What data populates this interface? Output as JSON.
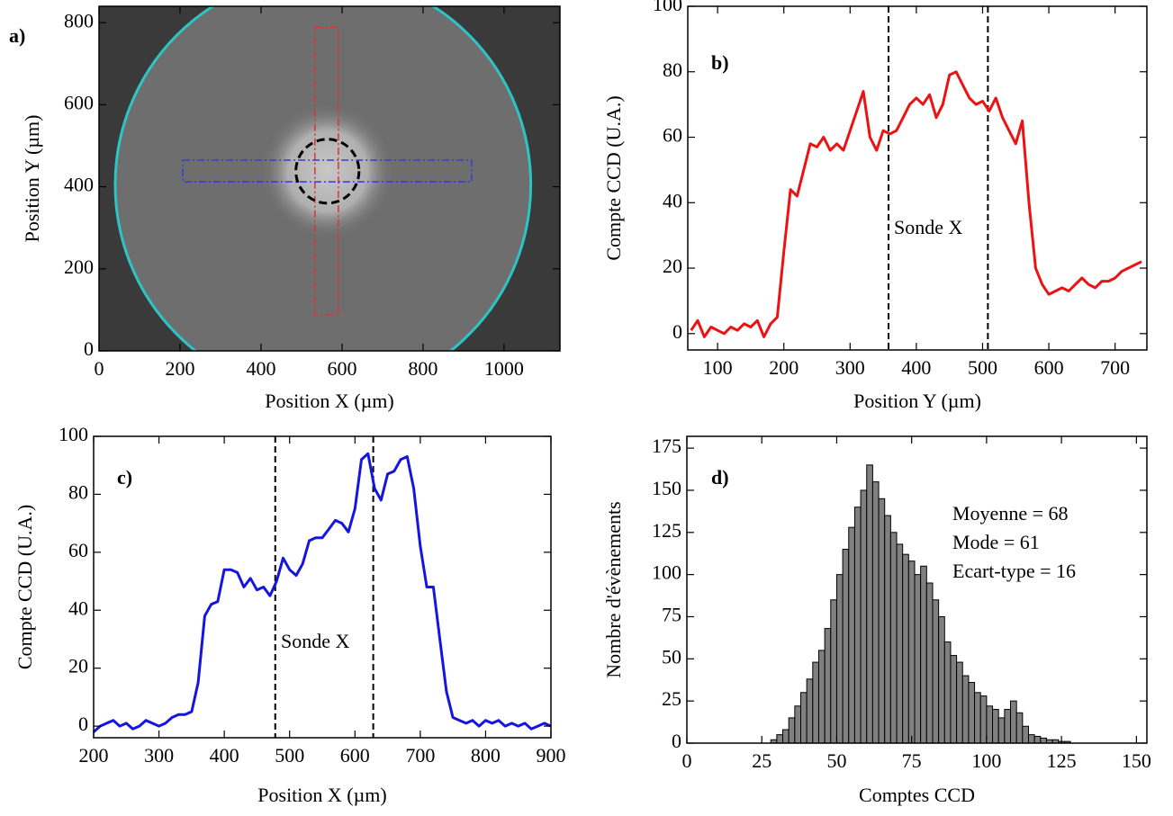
{
  "chart_data": [
    {
      "type": "image",
      "panel_label": "a)",
      "x_label": "Position X (µm)",
      "y_label": "Position Y (µm)",
      "xlim": [
        0,
        1138
      ],
      "ylim": [
        0,
        840
      ],
      "xticks": [
        0,
        200,
        400,
        600,
        800,
        1000
      ],
      "yticks": [
        0,
        200,
        400,
        600,
        800
      ],
      "sample_circle": {
        "center": [
          553,
          405
        ],
        "radius": 513,
        "color": "#2ec4c4"
      },
      "probe_circle": {
        "center": [
          564,
          438
        ],
        "radius": 78,
        "color": "#000000"
      },
      "profile_y_region": {
        "x": [
          533,
          591
        ],
        "y": [
          88,
          789
        ],
        "color": "#e03030"
      },
      "profile_x_region": {
        "x": [
          207,
          920
        ],
        "y": [
          412,
          465
        ],
        "color": "#3a3ad0"
      }
    },
    {
      "type": "line",
      "panel_label": "b)",
      "x_label": "Position Y (µm)",
      "y_label": "Compte CCD (U.A.)",
      "annotation": "Sonde X",
      "xlim": [
        55,
        748
      ],
      "ylim": [
        -5,
        100
      ],
      "xticks": [
        100,
        200,
        300,
        400,
        500,
        600,
        700
      ],
      "yticks": [
        0,
        20,
        40,
        60,
        80,
        100
      ],
      "vlines": [
        358,
        508
      ],
      "color": "#ee1111",
      "x": [
        60,
        70,
        80,
        90,
        100,
        110,
        120,
        130,
        140,
        150,
        160,
        170,
        180,
        190,
        200,
        210,
        220,
        230,
        240,
        250,
        260,
        270,
        280,
        290,
        300,
        310,
        320,
        330,
        340,
        350,
        360,
        370,
        380,
        390,
        400,
        410,
        420,
        430,
        440,
        450,
        460,
        470,
        480,
        490,
        500,
        510,
        520,
        530,
        540,
        550,
        560,
        570,
        580,
        590,
        600,
        610,
        620,
        630,
        640,
        650,
        660,
        670,
        680,
        690,
        700,
        710,
        720,
        730,
        740
      ],
      "values": [
        1,
        4,
        -1,
        2,
        1,
        0,
        2,
        1,
        3,
        2,
        4,
        -1,
        3,
        5,
        25,
        44,
        42,
        50,
        58,
        57,
        60,
        56,
        58,
        56,
        62,
        68,
        74,
        60,
        56,
        62,
        61,
        62,
        66,
        70,
        72,
        70,
        73,
        66,
        70,
        79,
        80,
        76,
        72,
        70,
        71,
        68,
        72,
        66,
        62,
        58,
        65,
        40,
        20,
        15,
        12,
        13,
        14,
        13,
        15,
        17,
        15,
        14,
        16,
        16,
        17,
        19,
        20,
        21,
        22
      ]
    },
    {
      "type": "line",
      "panel_label": "c)",
      "x_label": "Position X (µm)",
      "y_label": "Compte CCD (U.A.)",
      "annotation": "Sonde X",
      "xlim": [
        200,
        900
      ],
      "ylim": [
        -4,
        100
      ],
      "xticks": [
        200,
        300,
        400,
        500,
        600,
        700,
        800,
        900
      ],
      "yticks": [
        0,
        20,
        40,
        60,
        80,
        100
      ],
      "vlines": [
        478,
        628
      ],
      "color": "#1515e0",
      "x": [
        200,
        210,
        220,
        230,
        240,
        250,
        260,
        270,
        280,
        290,
        300,
        310,
        320,
        330,
        340,
        350,
        360,
        370,
        380,
        390,
        400,
        410,
        420,
        430,
        440,
        450,
        460,
        470,
        480,
        490,
        500,
        510,
        520,
        530,
        540,
        550,
        560,
        570,
        580,
        590,
        600,
        610,
        620,
        630,
        640,
        650,
        660,
        670,
        680,
        690,
        700,
        710,
        720,
        730,
        740,
        750,
        760,
        770,
        780,
        790,
        800,
        810,
        820,
        830,
        840,
        850,
        860,
        870,
        880,
        890,
        900
      ],
      "values": [
        -2,
        0,
        1,
        2,
        0,
        1,
        -1,
        0,
        2,
        1,
        0,
        1,
        3,
        4,
        4,
        5,
        15,
        38,
        42,
        43,
        54,
        54,
        53,
        48,
        51,
        47,
        48,
        45,
        50,
        58,
        54,
        52,
        56,
        64,
        65,
        65,
        68,
        71,
        70,
        67,
        75,
        92,
        94,
        82,
        78,
        87,
        88,
        92,
        93,
        82,
        62,
        48,
        48,
        30,
        12,
        3,
        2,
        1,
        2,
        0,
        2,
        1,
        2,
        0,
        1,
        0,
        1,
        -1,
        0,
        1,
        0
      ]
    },
    {
      "type": "histogram",
      "panel_label": "d)",
      "x_label": "Comptes CCD",
      "y_label": "Nombre d'évènements",
      "annotations": [
        "Moyenne = 68",
        "Mode = 61",
        "Ecart-type = 16"
      ],
      "xlim": [
        0,
        153.5
      ],
      "ylim": [
        0,
        182
      ],
      "xticks": [
        0,
        25,
        50,
        75,
        100,
        125,
        150
      ],
      "yticks": [
        0,
        25,
        50,
        75,
        100,
        125,
        150,
        175
      ],
      "color": "#808080",
      "bins": [
        28,
        30,
        32,
        34,
        36,
        38,
        40,
        42,
        44,
        46,
        48,
        50,
        52,
        54,
        56,
        58,
        60,
        62,
        64,
        66,
        68,
        70,
        72,
        74,
        76,
        78,
        80,
        82,
        84,
        86,
        88,
        90,
        92,
        94,
        96,
        98,
        100,
        102,
        104,
        106,
        108,
        110,
        112,
        114,
        116,
        118,
        120,
        122,
        124,
        126,
        128
      ],
      "values": [
        2,
        5,
        8,
        15,
        22,
        30,
        38,
        48,
        55,
        68,
        85,
        100,
        115,
        128,
        140,
        150,
        165,
        155,
        145,
        135,
        125,
        118,
        112,
        108,
        100,
        105,
        95,
        85,
        75,
        60,
        52,
        48,
        40,
        36,
        30,
        28,
        22,
        20,
        15,
        20,
        25,
        18,
        10,
        5,
        4,
        3,
        2,
        2,
        1,
        1
      ]
    }
  ]
}
